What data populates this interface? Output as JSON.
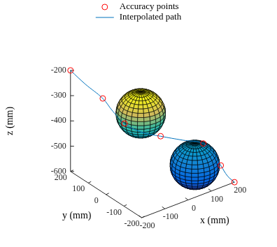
{
  "chart_data": {
    "type": "scatter3d",
    "xlabel": "x (mm)",
    "ylabel": "y (mm)",
    "zlabel": "z (mm)",
    "xlim": [
      -200,
      200
    ],
    "ylim": [
      -200,
      200
    ],
    "zlim": [
      -600,
      -200
    ],
    "xticks": [
      -200,
      -100,
      0,
      100,
      200
    ],
    "yticks": [
      -200,
      -100,
      0,
      100,
      200
    ],
    "zticks": [
      -600,
      -500,
      -400,
      -300,
      -200
    ],
    "grid": false,
    "legend": "top",
    "series": [
      {
        "name": "Accuracy points",
        "type": "scatter",
        "marker": "circle",
        "color": "#ff0000",
        "x": [
          -200,
          -140,
          -136,
          -11,
          81,
          141,
          200
        ],
        "y": [
          200,
          97,
          -20,
          -60,
          -180,
          -200,
          -200
        ],
        "z": [
          -200,
          -285,
          -332,
          -408,
          -414,
          -513,
          -600
        ]
      },
      {
        "name": "Interpolated path",
        "type": "line",
        "line_style": "solid",
        "color": "#0072bd",
        "x": [
          -200,
          -175,
          -140,
          -140,
          -136,
          -80,
          -11,
          35,
          81,
          110,
          141,
          170,
          200
        ],
        "y": [
          200,
          150,
          97,
          40,
          -20,
          -45,
          -60,
          -125,
          -180,
          -195,
          -200,
          -200,
          -200
        ],
        "z": [
          -200,
          -240,
          -285,
          -310,
          -332,
          -375,
          -408,
          -410,
          -414,
          -455,
          -513,
          -565,
          -600
        ]
      }
    ],
    "spheres": [
      {
        "center": [
          -20,
          40,
          -360
        ],
        "radius": 85
      },
      {
        "center": [
          75,
          -140,
          -515
        ],
        "radius": 85
      }
    ]
  }
}
